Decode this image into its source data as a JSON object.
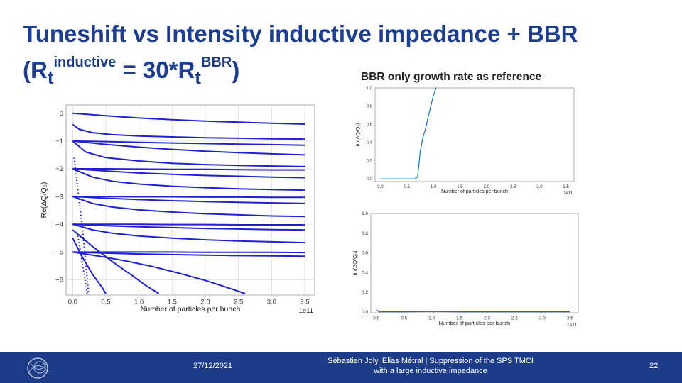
{
  "slide": {
    "title_line1": "Tuneshift vs Intensity inductive impedance + BBR",
    "title_open": "(R",
    "title_sub1": "t",
    "title_sup1": "inductive",
    "title_eq": " = 30*R",
    "title_sub2": "t",
    "title_sup2": "BBR",
    "title_close": ")",
    "subheading": "BBR only growth rate as reference"
  },
  "footer": {
    "date": "27/12/2021",
    "authors_line1": "Sébastien Joly, Elias Métral | Suppression of the SPS TMCI",
    "authors_line2": "with a large inductive impedance",
    "page_number": "22"
  },
  "chart_data": [
    {
      "type": "line",
      "xlabel": "Number of particles per bunch",
      "ylabel": "Re(ΔQ/Q₀)",
      "x_multiplier": "1e11",
      "xlim": [
        -0.1,
        3.65
      ],
      "ylim": [
        -6.55,
        0.3
      ],
      "x_ticks": [
        "0.0",
        "0.5",
        "1.0",
        "1.5",
        "2.0",
        "2.5",
        "3.0",
        "3.5"
      ],
      "y_ticks": [
        "0",
        "−1",
        "−2",
        "−3",
        "−4",
        "−5",
        "−6"
      ],
      "grid": true,
      "series": [
        {
          "x": [
            0,
            0.5,
            1,
            1.5,
            2,
            2.5,
            3,
            3.5
          ],
          "y": [
            0,
            -0.09,
            -0.17,
            -0.23,
            -0.28,
            -0.32,
            -0.36,
            -0.39
          ]
        },
        {
          "x": [
            0,
            0.1,
            0.3,
            0.6,
            1,
            1.5,
            2,
            2.5,
            3,
            3.5
          ],
          "y": [
            -0.4,
            -0.58,
            -0.7,
            -0.77,
            -0.82,
            -0.85,
            -0.88,
            -0.9,
            -0.92,
            -0.93
          ]
        },
        {
          "x": [
            0,
            0.5,
            1,
            1.5,
            2,
            2.5,
            3,
            3.5
          ],
          "y": [
            -1,
            -1.02,
            -1.05,
            -1.07,
            -1.09,
            -1.11,
            -1.13,
            -1.15
          ]
        },
        {
          "x": [
            0,
            0.5,
            1,
            1.5,
            2,
            2.5,
            3,
            3.5
          ],
          "y": [
            -1,
            -1.12,
            -1.22,
            -1.3,
            -1.37,
            -1.42,
            -1.46,
            -1.5
          ]
        },
        {
          "x": [
            0,
            0.2,
            0.5,
            1,
            1.5,
            2,
            2.5,
            3,
            3.5
          ],
          "y": [
            -1,
            -1.4,
            -1.6,
            -1.72,
            -1.8,
            -1.85,
            -1.88,
            -1.9,
            -1.92
          ]
        },
        {
          "x": [
            0,
            0.5,
            1,
            1.5,
            2,
            2.5,
            3,
            3.5
          ],
          "y": [
            -2,
            -2,
            -2.01,
            -2.02,
            -2.02,
            -2.03,
            -2.04,
            -2.04
          ]
        },
        {
          "x": [
            0,
            0.5,
            1,
            1.5,
            2,
            2.5,
            3,
            3.5
          ],
          "y": [
            -2,
            -2.08,
            -2.15,
            -2.2,
            -2.24,
            -2.27,
            -2.3,
            -2.32
          ]
        },
        {
          "x": [
            0,
            0.3,
            0.6,
            1,
            1.5,
            2,
            2.5,
            3,
            3.5
          ],
          "y": [
            -2,
            -2.3,
            -2.45,
            -2.55,
            -2.63,
            -2.68,
            -2.72,
            -2.75,
            -2.77
          ]
        },
        {
          "x": [
            0,
            0.5,
            1,
            1.5,
            2,
            2.5,
            3,
            3.5
          ],
          "y": [
            -3,
            -3,
            -3.01,
            -3.01,
            -3.02,
            -3.02,
            -3.03,
            -3.03
          ]
        },
        {
          "x": [
            0,
            0.5,
            1,
            1.5,
            2,
            2.5,
            3,
            3.5
          ],
          "y": [
            -3,
            -3.06,
            -3.11,
            -3.15,
            -3.18,
            -3.21,
            -3.23,
            -3.25
          ]
        },
        {
          "x": [
            0,
            0.3,
            0.6,
            1,
            1.5,
            2,
            2.5,
            3,
            3.5
          ],
          "y": [
            -3,
            -3.25,
            -3.38,
            -3.48,
            -3.56,
            -3.62,
            -3.66,
            -3.7,
            -3.72
          ]
        },
        {
          "x": [
            0,
            0.5,
            1,
            1.5,
            2,
            2.5,
            3,
            3.5
          ],
          "y": [
            -4,
            -4,
            -4,
            -4.01,
            -4.01,
            -4.02,
            -4.02,
            -4.02
          ]
        },
        {
          "x": [
            0,
            0.5,
            1,
            1.5,
            2,
            2.5,
            3,
            3.5
          ],
          "y": [
            -4,
            -4.05,
            -4.09,
            -4.12,
            -4.15,
            -4.17,
            -4.19,
            -4.2
          ]
        },
        {
          "x": [
            0,
            0.3,
            0.6,
            1,
            1.5,
            2,
            2.5,
            3,
            3.5
          ],
          "y": [
            -4,
            -4.2,
            -4.32,
            -4.42,
            -4.5,
            -4.56,
            -4.6,
            -4.63,
            -4.66
          ]
        },
        {
          "x": [
            0,
            0.5,
            1,
            1.5,
            2,
            2.5,
            3,
            3.5
          ],
          "y": [
            -5,
            -5,
            -5,
            -5,
            -5.01,
            -5.01,
            -5.01,
            -5.02
          ]
        },
        {
          "x": [
            0,
            0.5,
            1,
            1.5,
            2,
            2.5,
            3,
            3.5
          ],
          "y": [
            -5,
            -5.04,
            -5.07,
            -5.09,
            -5.11,
            -5.13,
            -5.14,
            -5.15
          ]
        },
        {
          "x": [
            0,
            0.4,
            0.8,
            1.2,
            1.6,
            2,
            2.4,
            2.6
          ],
          "y": [
            -5,
            -5.15,
            -5.32,
            -5.52,
            -5.76,
            -6.02,
            -6.33,
            -6.5
          ]
        },
        {
          "x": [
            0,
            0.3,
            0.6,
            0.9,
            1.1,
            1.3
          ],
          "y": [
            -4.2,
            -4.8,
            -5.35,
            -5.85,
            -6.2,
            -6.5
          ]
        },
        {
          "x": [
            0,
            0.15,
            0.3,
            0.45,
            0.5
          ],
          "y": [
            -4.5,
            -5.2,
            -5.8,
            -6.3,
            -6.5
          ]
        },
        {
          "x": [
            0.02,
            0.08,
            0.14,
            0.19,
            0.22,
            0.24
          ],
          "y": [
            -1.6,
            -2.8,
            -4.0,
            -5.2,
            -6.0,
            -6.5
          ]
        },
        {
          "x": [
            0.07,
            0.13,
            0.18,
            0.22
          ],
          "y": [
            -4.3,
            -5.2,
            -5.9,
            -6.5
          ]
        }
      ]
    },
    {
      "type": "line",
      "xlabel": "Number of particles per bunch",
      "ylabel": "Im(ΔQ/Q₀)",
      "x_multiplier": "1e11",
      "xlim": [
        -0.1,
        3.65
      ],
      "ylim": [
        -0.03,
        1.0
      ],
      "x_ticks": [
        "0.0",
        "0.5",
        "1.0",
        "1.5",
        "2.0",
        "2.5",
        "3.0",
        "3.5"
      ],
      "y_ticks": [
        "0.0",
        "0.2",
        "0.4",
        "0.6",
        "0.8",
        "1.0"
      ],
      "series": [
        {
          "x": [
            0,
            0.65,
            0.7,
            0.72,
            0.75,
            0.8,
            0.85,
            0.9,
            0.95,
            1.0,
            1.05
          ],
          "y": [
            0,
            0,
            0.02,
            0.12,
            0.3,
            0.45,
            0.55,
            0.68,
            0.8,
            0.92,
            1.0
          ]
        }
      ]
    },
    {
      "type": "line",
      "xlabel": "Number of particles per bunch",
      "ylabel": "Im(ΔQ/Q₀)",
      "x_multiplier": "1e11",
      "xlim": [
        -0.1,
        3.65
      ],
      "ylim": [
        -0.01,
        1.0
      ],
      "x_ticks": [
        "0.0",
        "0.5",
        "1.0",
        "1.5",
        "2.0",
        "2.5",
        "3.0",
        "3.5"
      ],
      "y_ticks": [
        "0.0",
        "0.2",
        "0.4",
        "0.6",
        "0.8",
        "1.0"
      ],
      "series": [
        {
          "x": [
            0,
            0.05,
            0.1,
            0.5,
            1,
            1.5,
            2,
            2.5,
            3,
            3.5
          ],
          "y": [
            0.02,
            0,
            0,
            0,
            0.002,
            0,
            0,
            0,
            0,
            0
          ]
        }
      ]
    }
  ]
}
